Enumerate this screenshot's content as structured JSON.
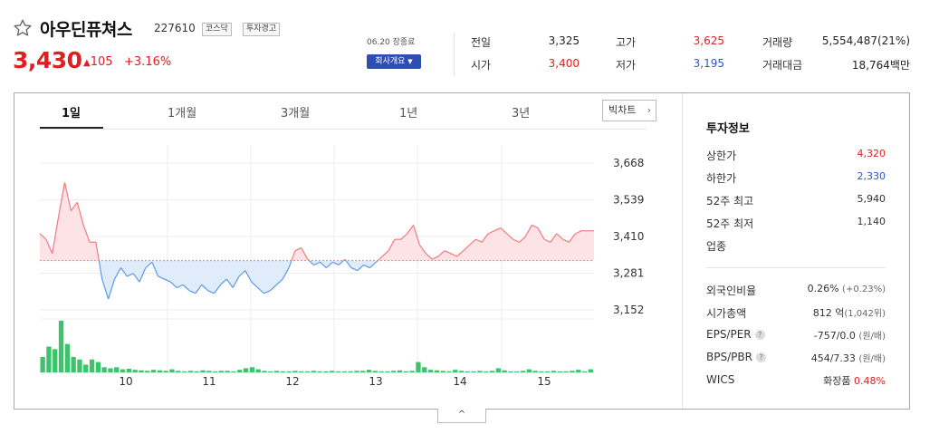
{
  "stock": {
    "name": "아우딘퓨쳐스",
    "code": "227610",
    "market_badge": "코스닥",
    "warning_badge": "투자경고",
    "price": "3,430",
    "change": "105",
    "change_pct": "+3.16%",
    "date_label": "06.20 장종료",
    "company_info_button": "회사개요"
  },
  "quote": {
    "prev_close_label": "전일",
    "prev_close": "3,325",
    "open_label": "시가",
    "open": "3,400",
    "high_label": "고가",
    "high": "3,625",
    "low_label": "저가",
    "low": "3,195",
    "volume_label": "거래량",
    "volume": "5,554,487(21%)",
    "amount_label": "거래대금",
    "amount": "18,764백만"
  },
  "tabs": [
    "1일",
    "1개월",
    "3개월",
    "1년",
    "3년"
  ],
  "big_chart_button": "빅차트",
  "colors": {
    "up": "#e02020",
    "down": "#2b55cc",
    "volume": "#3cc36c"
  },
  "icons": {
    "favorite": "star-outline-icon",
    "expand": "chevron-up-icon",
    "more": "chevron-right-icon",
    "dropdown": "caret-down-icon"
  },
  "chart_data": {
    "type": "line",
    "baseline": 3325,
    "y_ticks": [
      3668,
      3539,
      3410,
      3281,
      3152
    ],
    "y_tick_labels": [
      "3,668",
      "3,539",
      "3,410",
      "3,281",
      "3,152"
    ],
    "ylim": [
      3152,
      3668
    ],
    "x_ticks": [
      "10",
      "11",
      "12",
      "13",
      "14",
      "15"
    ],
    "price_series": [
      3420,
      3400,
      3350,
      3480,
      3600,
      3500,
      3530,
      3450,
      3390,
      3390,
      3260,
      3190,
      3260,
      3300,
      3270,
      3280,
      3250,
      3300,
      3320,
      3270,
      3260,
      3250,
      3230,
      3240,
      3220,
      3210,
      3240,
      3220,
      3210,
      3240,
      3260,
      3230,
      3270,
      3290,
      3250,
      3230,
      3210,
      3220,
      3240,
      3260,
      3300,
      3360,
      3370,
      3330,
      3310,
      3320,
      3300,
      3320,
      3310,
      3330,
      3300,
      3290,
      3310,
      3300,
      3320,
      3340,
      3360,
      3400,
      3400,
      3420,
      3450,
      3380,
      3350,
      3330,
      3340,
      3360,
      3350,
      3340,
      3360,
      3380,
      3400,
      3390,
      3420,
      3430,
      3440,
      3420,
      3400,
      3390,
      3410,
      3450,
      3440,
      3400,
      3390,
      3420,
      3400,
      3390,
      3420,
      3430,
      3430,
      3430
    ],
    "volume_series": [
      30,
      50,
      45,
      100,
      55,
      30,
      25,
      15,
      25,
      20,
      10,
      8,
      10,
      6,
      7,
      5,
      4,
      3,
      5,
      4,
      3,
      6,
      3,
      2,
      3,
      2,
      4,
      3,
      2,
      3,
      3,
      2,
      5,
      8,
      10,
      6,
      3,
      2,
      3,
      2,
      2,
      3,
      2,
      2,
      3,
      2,
      2,
      3,
      2,
      2,
      2,
      3,
      3,
      5,
      3,
      2,
      2,
      3,
      4,
      2,
      3,
      20,
      10,
      5,
      4,
      3,
      2,
      5,
      3,
      2,
      2,
      3,
      2,
      3,
      8,
      4,
      2,
      2,
      3,
      6,
      3,
      2,
      2,
      3,
      2,
      2,
      3,
      5,
      2,
      6
    ]
  },
  "sidebar": {
    "title": "투자정보",
    "rows": [
      {
        "label": "상한가",
        "value": "4,320"
      },
      {
        "label": "하한가",
        "value": "2,330"
      },
      {
        "label": "52주 최고",
        "value": "5,940"
      },
      {
        "label": "52주 최저",
        "value": "1,140"
      },
      {
        "label": "업종",
        "value": ""
      }
    ],
    "rows2": [
      {
        "label": "외국인비율",
        "value": "0.26%",
        "sub": "(+0.23%)"
      },
      {
        "label": "시가총액",
        "value": "812 억",
        "sub": "(1,042위)"
      },
      {
        "label": "EPS/PER",
        "value": "-757/0.0",
        "sub": "(원/배)",
        "help": "?"
      },
      {
        "label": "BPS/PBR",
        "value": "454/7.33",
        "sub": "(원/배)",
        "help": "?"
      },
      {
        "label": "WICS",
        "value": "화장품",
        "sub": "0.48%"
      }
    ]
  },
  "collapse_button": "^"
}
